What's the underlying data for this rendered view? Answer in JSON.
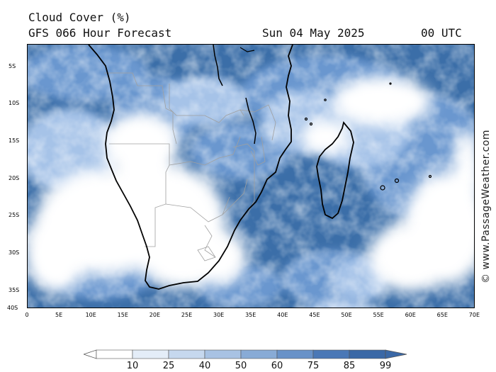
{
  "header": {
    "title": "Cloud Cover (%)",
    "forecast": "GFS 066 Hour Forecast",
    "date": "Sun 04 May 2025",
    "time": "00 UTC"
  },
  "credit": "© www.PassageWeather.com",
  "map": {
    "lat_labels": [
      "5S",
      "10S",
      "15S",
      "20S",
      "25S",
      "30S",
      "35S",
      "40S"
    ],
    "lon_labels": [
      "0",
      "5E",
      "10E",
      "15E",
      "20E",
      "25E",
      "30E",
      "35E",
      "40E",
      "45E",
      "50E",
      "55E",
      "60E",
      "65E",
      "70E"
    ],
    "lat_range": [
      -40,
      -2
    ],
    "lon_range": [
      0,
      70
    ]
  },
  "legend": {
    "levels": [
      "10",
      "25",
      "40",
      "50",
      "60",
      "75",
      "85",
      "99"
    ],
    "colors": [
      "#ffffff",
      "#e4edf8",
      "#c6d8ee",
      "#a8c2e3",
      "#88abd6",
      "#6892c8",
      "#4a78b6",
      "#3a68a6"
    ]
  },
  "colors": {
    "ocean_cloud_dark": "#3b6ea8",
    "cloud_mid": "#6b97cf",
    "cloud_light": "#a6c3e8",
    "clear": "#ffffff",
    "coast": "#000000",
    "border": "#a0a0a0"
  }
}
